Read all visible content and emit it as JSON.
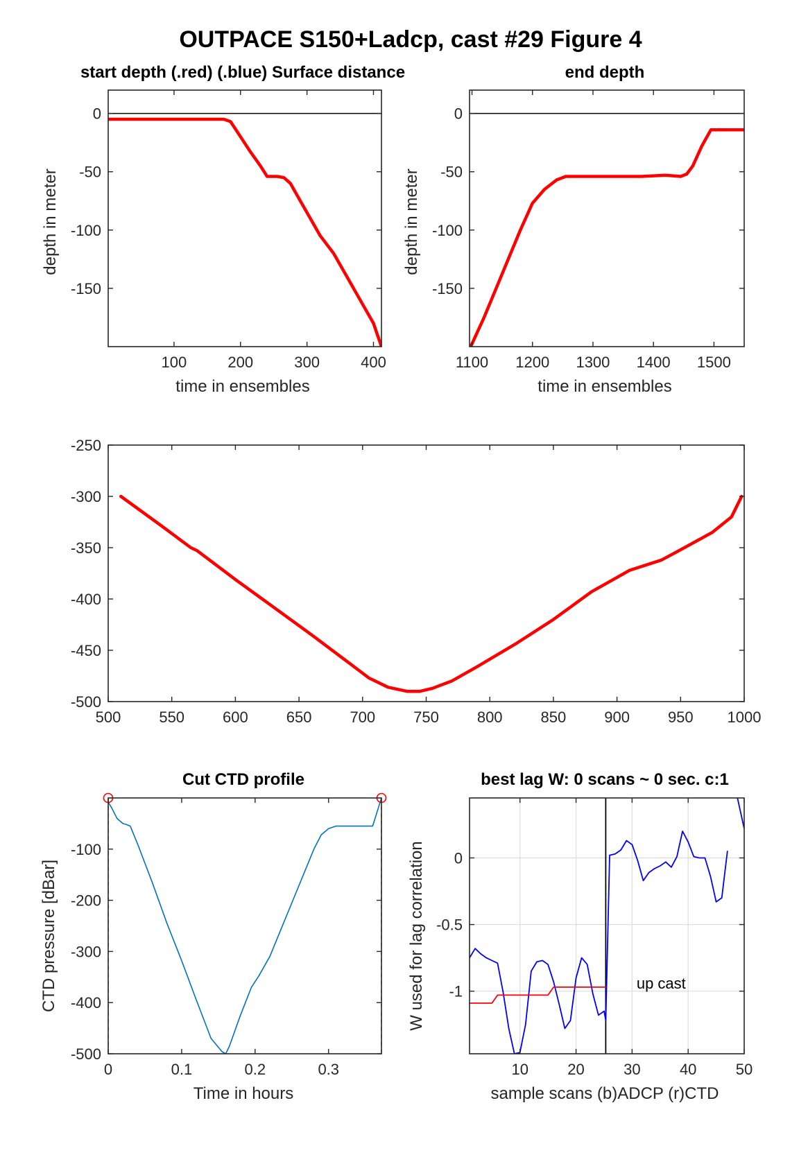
{
  "figure": {
    "title": "OUTPACE S150+Ladcp, cast #29   Figure 4"
  },
  "chart_data": [
    {
      "id": "start",
      "type": "line",
      "title": "start depth (.red) (.blue) Surface distance",
      "xlabel": "time in ensembles",
      "ylabel": "depth in meter",
      "xlim": [
        1,
        412
      ],
      "ylim": [
        -200,
        20
      ],
      "xticks": [
        100,
        200,
        300,
        400
      ],
      "yticks": [
        0,
        -50,
        -100,
        -150
      ],
      "grid": false,
      "hline": 0,
      "series": [
        {
          "color": "#ff0000",
          "x": [
            1,
            50,
            100,
            150,
            175,
            185,
            200,
            215,
            230,
            240,
            255,
            265,
            275,
            290,
            305,
            320,
            340,
            360,
            380,
            400,
            412
          ],
          "y": [
            -5,
            -5,
            -5,
            -5,
            -5,
            -7,
            -20,
            -33,
            -45,
            -54,
            -54,
            -55,
            -60,
            -75,
            -90,
            -105,
            -120,
            -140,
            -160,
            -180,
            -200
          ]
        }
      ]
    },
    {
      "id": "end",
      "type": "line",
      "title": "end depth",
      "xlabel": "time in ensembles",
      "ylabel": "depth in meter",
      "xlim": [
        1096,
        1550
      ],
      "ylim": [
        -200,
        20
      ],
      "xticks": [
        1100,
        1200,
        1300,
        1400,
        1500
      ],
      "yticks": [
        0,
        -50,
        -100,
        -150
      ],
      "grid": false,
      "hline": 0,
      "series": [
        {
          "color": "#ff0000",
          "x": [
            1098,
            1120,
            1140,
            1160,
            1180,
            1200,
            1220,
            1240,
            1255,
            1265,
            1300,
            1340,
            1380,
            1420,
            1445,
            1455,
            1465,
            1480,
            1495,
            1510,
            1550
          ],
          "y": [
            -200,
            -175,
            -150,
            -125,
            -100,
            -77,
            -65,
            -57,
            -54,
            -54,
            -54,
            -54,
            -54,
            -53,
            -54,
            -52,
            -45,
            -28,
            -14,
            -14,
            -14
          ]
        }
      ]
    },
    {
      "id": "bottom",
      "type": "line",
      "title": "",
      "xlabel": "",
      "ylabel": "",
      "xlim": [
        500,
        1000
      ],
      "ylim": [
        -500,
        -250
      ],
      "xticks": [
        500,
        550,
        600,
        650,
        700,
        750,
        800,
        850,
        900,
        950,
        1000
      ],
      "yticks": [
        -250,
        -300,
        -350,
        -400,
        -450,
        -500
      ],
      "grid": false,
      "series": [
        {
          "color": "#ff0000",
          "x": [
            510,
            540,
            565,
            570,
            600,
            630,
            660,
            690,
            705,
            720,
            735,
            745,
            755,
            770,
            790,
            820,
            850,
            880,
            910,
            915,
            935,
            950,
            975,
            990,
            998
          ],
          "y": [
            -300,
            -327,
            -350,
            -353,
            -381,
            -408,
            -435,
            -463,
            -477,
            -486,
            -490,
            -490,
            -487,
            -480,
            -466,
            -444,
            -420,
            -393,
            -372,
            -370,
            -362,
            -352,
            -335,
            -320,
            -300
          ]
        }
      ]
    },
    {
      "id": "cut",
      "type": "line",
      "title": "Cut CTD profile",
      "xlabel": "Time in hours",
      "ylabel": "CTD pressure [dBar]",
      "xlim": [
        0,
        0.372
      ],
      "ylim": [
        -500,
        0
      ],
      "xticks": [
        0,
        0.1,
        0.2,
        0.3
      ],
      "yticks": [
        -100,
        -200,
        -300,
        -400,
        -500
      ],
      "grid": false,
      "markers": [
        {
          "x": 0,
          "y": 0
        },
        {
          "x": 0.372,
          "y": 0
        }
      ],
      "vlines": [
        0,
        0.372
      ],
      "series": [
        {
          "color": "#0072bd",
          "x": [
            0,
            0.005,
            0.012,
            0.02,
            0.025,
            0.03,
            0.04,
            0.06,
            0.08,
            0.1,
            0.12,
            0.14,
            0.155,
            0.16,
            0.165,
            0.18,
            0.195,
            0.205,
            0.22,
            0.24,
            0.26,
            0.28,
            0.29,
            0.3,
            0.31,
            0.32,
            0.34,
            0.36,
            0.372
          ],
          "y": [
            -8,
            -20,
            -40,
            -50,
            -52,
            -55,
            -90,
            -165,
            -245,
            -318,
            -395,
            -470,
            -496,
            -500,
            -485,
            -425,
            -370,
            -348,
            -310,
            -240,
            -170,
            -100,
            -72,
            -60,
            -55,
            -55,
            -55,
            -55,
            0
          ]
        }
      ]
    },
    {
      "id": "lag",
      "type": "line",
      "title": "best lag W: 0 scans ~ 0 sec.  c:1",
      "xlabel": "sample scans (b)ADCP (r)CTD",
      "ylabel": "W used for lag correlation",
      "xlim": [
        1,
        50
      ],
      "ylim": [
        -1.47,
        0.45
      ],
      "xticks": [
        10,
        20,
        30,
        40,
        50
      ],
      "yticks": [
        0,
        -0.5,
        -1
      ],
      "grid": true,
      "vline": 25.3,
      "annotation": {
        "text": "up cast",
        "x": 30.8,
        "y": -0.98
      },
      "series": [
        {
          "color": "#0000ff",
          "x": [
            1,
            2,
            3,
            4,
            5,
            6,
            7,
            8,
            9,
            10,
            11,
            12,
            13,
            14,
            15,
            16,
            17,
            18,
            19,
            20,
            21,
            22,
            23,
            24,
            25,
            25.3,
            26,
            27,
            28,
            29,
            30,
            31,
            32,
            33,
            34,
            35,
            36,
            37,
            38,
            39,
            40,
            41,
            42,
            43,
            44,
            45,
            46,
            47
          ],
          "y": [
            -0.75,
            -0.68,
            -0.72,
            -0.75,
            -0.77,
            -0.79,
            -1.01,
            -1.28,
            -1.47,
            -1.46,
            -1.25,
            -0.85,
            -0.78,
            -0.77,
            -0.8,
            -0.93,
            -1.1,
            -1.28,
            -1.22,
            -0.9,
            -0.75,
            -0.8,
            -1.02,
            -1.18,
            -1.15,
            -1.22,
            0.02,
            0.03,
            0.06,
            0.13,
            0.1,
            -0.02,
            -0.17,
            -0.11,
            -0.08,
            -0.06,
            -0.03,
            -0.07,
            0.01,
            0.2,
            0.12,
            0.01,
            0.0,
            0.0,
            -0.14,
            -0.33,
            -0.3,
            0.05
          ]
        },
        {
          "color": "#0000ff",
          "x": [
            48.8,
            50
          ],
          "y": [
            0.45,
            0.22
          ]
        },
        {
          "color": "#ff0000",
          "x": [
            1,
            5,
            6,
            7,
            11,
            15,
            16,
            20,
            25.3
          ],
          "y": [
            -1.09,
            -1.09,
            -1.03,
            -1.03,
            -1.03,
            -1.03,
            -0.97,
            -0.97,
            -0.97
          ]
        }
      ]
    }
  ]
}
